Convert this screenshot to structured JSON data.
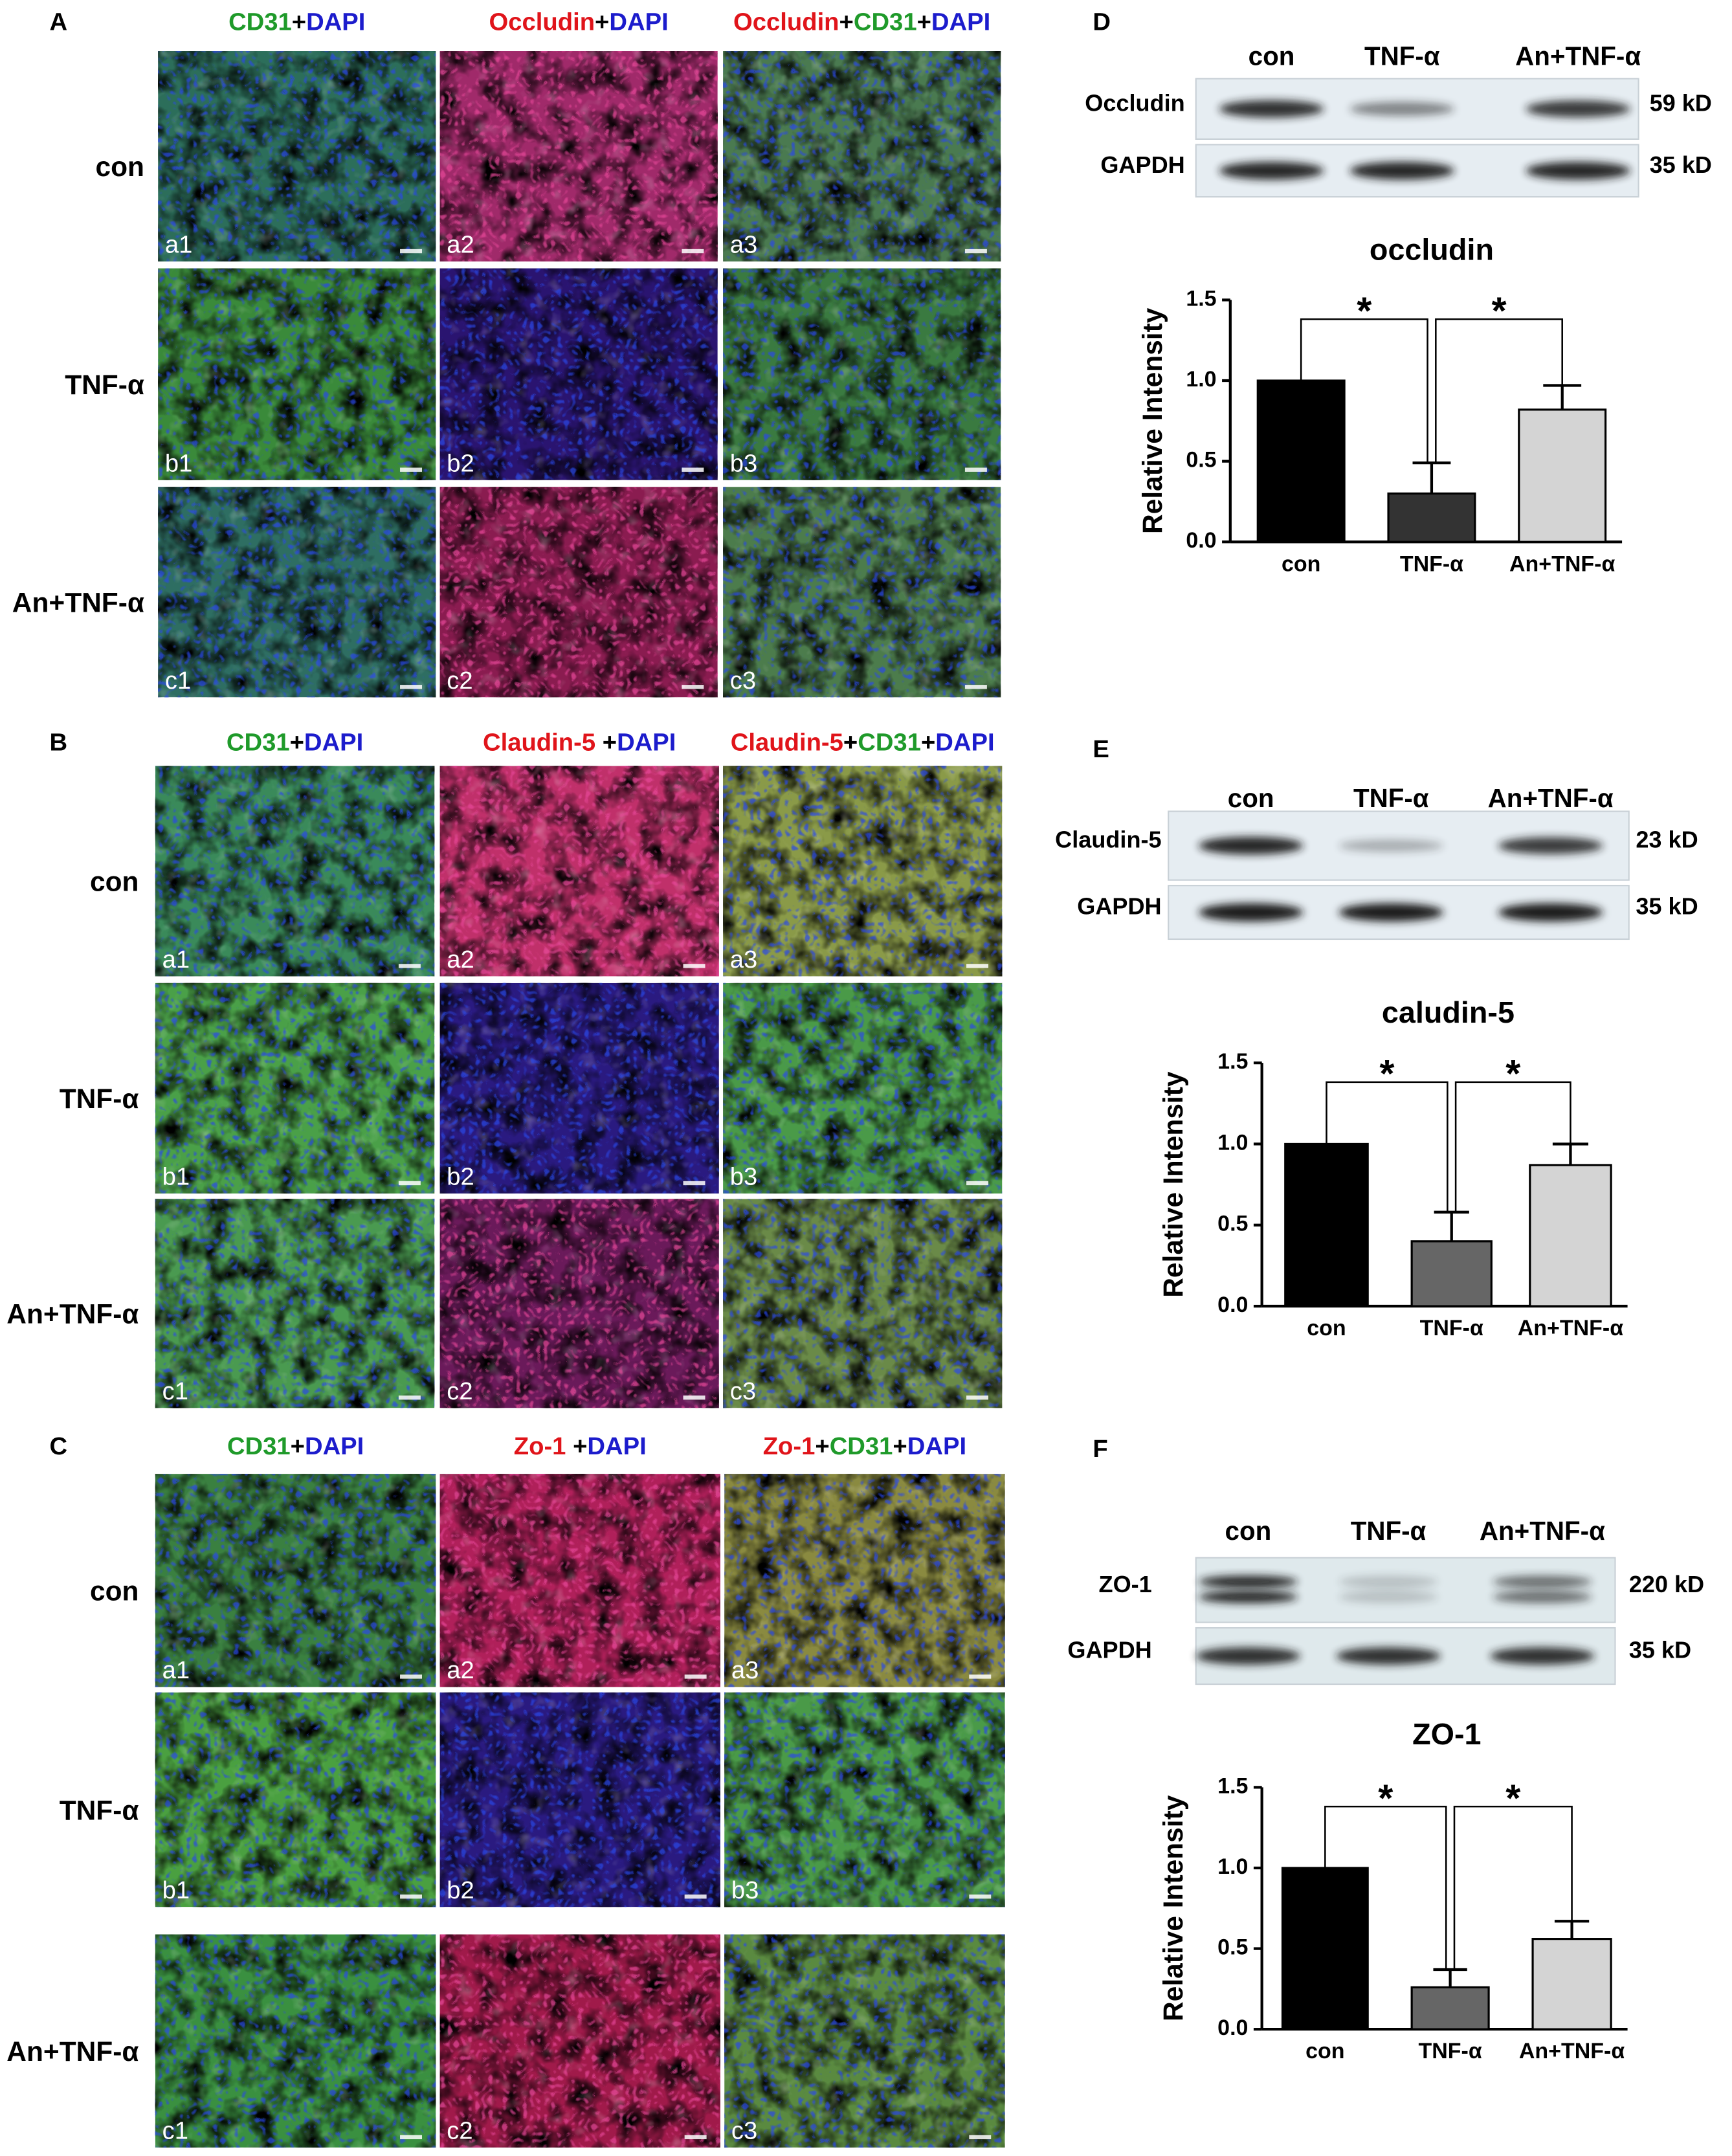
{
  "if_panels": [
    {
      "label": "A",
      "headers": [
        [
          {
            "text": "CD31",
            "color": "#1f9a2a"
          },
          {
            "text": "+",
            "color": "#000000"
          },
          {
            "text": "DAPI",
            "color": "#1c1ccc"
          }
        ],
        [
          {
            "text": "Occludin",
            "color": "#e0141a"
          },
          {
            "text": "+",
            "color": "#000000"
          },
          {
            "text": "DAPI",
            "color": "#1c1ccc"
          }
        ],
        [
          {
            "text": "Occludin",
            "color": "#e0141a"
          },
          {
            "text": "+",
            "color": "#000000"
          },
          {
            "text": "CD31",
            "color": "#1f9a2a"
          },
          {
            "text": "+",
            "color": "#000000"
          },
          {
            "text": "DAPI",
            "color": "#1c1ccc"
          }
        ]
      ],
      "rows": [
        "con",
        "TNF-α",
        "An+TNF-α"
      ],
      "tiles": [
        [
          "a1",
          "a2",
          "a3"
        ],
        [
          "b1",
          "b2",
          "b3"
        ],
        [
          "c1",
          "c2",
          "c3"
        ]
      ]
    },
    {
      "label": "B",
      "headers": [
        [
          {
            "text": "CD31",
            "color": "#1f9a2a"
          },
          {
            "text": "+",
            "color": "#000000"
          },
          {
            "text": "DAPI",
            "color": "#1c1ccc"
          }
        ],
        [
          {
            "text": "Claudin-5",
            "color": "#e0141a"
          },
          {
            "text": " +",
            "color": "#000000"
          },
          {
            "text": "DAPI",
            "color": "#1c1ccc"
          }
        ],
        [
          {
            "text": "Claudin-5",
            "color": "#e0141a"
          },
          {
            "text": "+",
            "color": "#000000"
          },
          {
            "text": "CD31",
            "color": "#1f9a2a"
          },
          {
            "text": "+",
            "color": "#000000"
          },
          {
            "text": "DAPI",
            "color": "#1c1ccc"
          }
        ]
      ],
      "rows": [
        "con",
        "TNF-α",
        "An+TNF-α"
      ],
      "tiles": [
        [
          "a1",
          "a2",
          "a3"
        ],
        [
          "b1",
          "b2",
          "b3"
        ],
        [
          "c1",
          "c2",
          "c3"
        ]
      ]
    },
    {
      "label": "C",
      "headers": [
        [
          {
            "text": "CD31",
            "color": "#1f9a2a"
          },
          {
            "text": "+",
            "color": "#000000"
          },
          {
            "text": "DAPI",
            "color": "#1c1ccc"
          }
        ],
        [
          {
            "text": "Zo-1",
            "color": "#e0141a"
          },
          {
            "text": " +",
            "color": "#000000"
          },
          {
            "text": "DAPI",
            "color": "#1c1ccc"
          }
        ],
        [
          {
            "text": "Zo-1",
            "color": "#e0141a"
          },
          {
            "text": "+",
            "color": "#000000"
          },
          {
            "text": "CD31",
            "color": "#1f9a2a"
          },
          {
            "text": "+",
            "color": "#000000"
          },
          {
            "text": "DAPI",
            "color": "#1c1ccc"
          }
        ]
      ],
      "rows": [
        "con",
        "TNF-α",
        "An+TNF-α"
      ],
      "tiles": [
        [
          "a1",
          "a2",
          "a3"
        ],
        [
          "b1",
          "b2",
          "b3"
        ],
        [
          "c1",
          "c2",
          "c3"
        ]
      ]
    }
  ],
  "western_blots": [
    {
      "label": "D",
      "lanes": [
        "con",
        "TNF-α",
        "An+TNF-α"
      ],
      "rows": [
        {
          "name": "Occludin",
          "size": "59 kD"
        },
        {
          "name": "GAPDH",
          "size": "35 kD"
        }
      ]
    },
    {
      "label": "E",
      "lanes": [
        "con",
        "TNF-α",
        "An+TNF-α"
      ],
      "rows": [
        {
          "name": "Claudin-5",
          "size": "23 kD"
        },
        {
          "name": "GAPDH",
          "size": "35 kD"
        }
      ]
    },
    {
      "label": "F",
      "lanes": [
        "con",
        "TNF-α",
        "An+TNF-α"
      ],
      "rows": [
        {
          "name": "ZO-1",
          "size": "220 kD"
        },
        {
          "name": "GAPDH",
          "size": "35 kD"
        }
      ]
    }
  ],
  "chart_data": [
    {
      "type": "bar",
      "title": "occludin",
      "ylabel": "Relative Intensity",
      "categories": [
        "con",
        "TNF-α",
        "An+TNF-α"
      ],
      "values": [
        1.0,
        0.3,
        0.82
      ],
      "errors": [
        null,
        0.19,
        0.15
      ],
      "colors": [
        "#000000",
        "#333333",
        "#d4d4d4"
      ],
      "ylim": [
        0,
        1.5
      ],
      "yticks": [
        {
          "value": 0,
          "label": "0.0"
        },
        {
          "value": 0.5,
          "label": "0.5"
        },
        {
          "value": 1,
          "label": "1.0"
        },
        {
          "value": 1.5,
          "label": "1.5"
        }
      ],
      "significance": [
        {
          "label": "*",
          "pair": [
            0,
            1
          ]
        },
        {
          "label": "*",
          "pair": [
            1,
            2
          ]
        }
      ]
    },
    {
      "type": "bar",
      "title": "caludin-5",
      "ylabel": "Relative Intensity",
      "categories": [
        "con",
        "TNF-α",
        "An+TNF-α"
      ],
      "values": [
        1.0,
        0.4,
        0.87
      ],
      "errors": [
        null,
        0.18,
        0.13
      ],
      "colors": [
        "#000000",
        "#666666",
        "#d4d4d4"
      ],
      "ylim": [
        0,
        1.5
      ],
      "yticks": [
        {
          "value": 0,
          "label": "0.0"
        },
        {
          "value": 0.5,
          "label": "0.5"
        },
        {
          "value": 1,
          "label": "1.0"
        },
        {
          "value": 1.5,
          "label": "1.5"
        }
      ],
      "significance": [
        {
          "label": "*",
          "pair": [
            0,
            1
          ]
        },
        {
          "label": "*",
          "pair": [
            1,
            2
          ]
        }
      ]
    },
    {
      "type": "bar",
      "title": "ZO-1",
      "ylabel": "Relative Intensity",
      "categories": [
        "con",
        "TNF-α",
        "An+TNF-α"
      ],
      "values": [
        1.0,
        0.26,
        0.56
      ],
      "errors": [
        null,
        0.11,
        0.11
      ],
      "colors": [
        "#000000",
        "#666666",
        "#d4d4d4"
      ],
      "ylim": [
        0,
        1.5
      ],
      "yticks": [
        {
          "value": 0,
          "label": "0.0"
        },
        {
          "value": 0.5,
          "label": "0.5"
        },
        {
          "value": 1,
          "label": "1.0"
        },
        {
          "value": 1.5,
          "label": "1.5"
        }
      ],
      "significance": [
        {
          "label": "*",
          "pair": [
            0,
            1
          ]
        },
        {
          "label": "*",
          "pair": [
            1,
            2
          ]
        }
      ]
    }
  ]
}
